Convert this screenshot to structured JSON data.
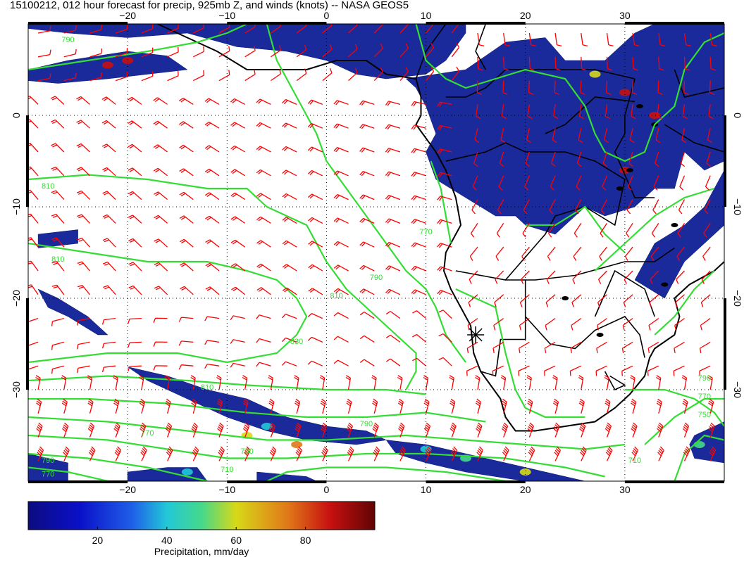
{
  "title": "15100212, 012 hour forecast for precip, 925mb Z, and winds (knots) -- NASA GEOS5",
  "map": {
    "lon_range": [
      -30,
      40
    ],
    "lat_range": [
      -40,
      10
    ],
    "lon_ticks": [
      -20,
      -10,
      0,
      10,
      20,
      30
    ],
    "lat_ticks": [
      0,
      -10,
      -20,
      -30
    ],
    "lon_tick_labels": [
      "−20",
      "−10",
      "0",
      "10",
      "20",
      "30"
    ],
    "lat_tick_labels": [
      "0",
      "−10",
      "−20",
      "−30"
    ],
    "gridlines": "dotted",
    "wind_barb_color": "#ff0000",
    "contour_color": "#33dd33",
    "coastline_color": "#000000",
    "precip_base_color": "#1a2a9a",
    "marker": {
      "lon": 15,
      "lat": -24,
      "shape": "asterisk"
    },
    "contour_labels": [
      {
        "text": "790",
        "lon": -26,
        "lat": 8
      },
      {
        "text": "810",
        "lon": -28,
        "lat": -8
      },
      {
        "text": "810",
        "lon": -27,
        "lat": -16
      },
      {
        "text": "810",
        "lon": 1,
        "lat": -20
      },
      {
        "text": "790",
        "lon": 5,
        "lat": -18
      },
      {
        "text": "830",
        "lon": -3,
        "lat": -25
      },
      {
        "text": "810",
        "lon": -12,
        "lat": -30
      },
      {
        "text": "790",
        "lon": 4,
        "lat": -34
      },
      {
        "text": "770",
        "lon": -18,
        "lat": -35
      },
      {
        "text": "730",
        "lon": -8,
        "lat": -37
      },
      {
        "text": "710",
        "lon": -10,
        "lat": -39
      },
      {
        "text": "790",
        "lon": -28,
        "lat": -38
      },
      {
        "text": "770",
        "lon": -28,
        "lat": -39.5
      },
      {
        "text": "770",
        "lon": 10,
        "lat": -13
      },
      {
        "text": "790",
        "lon": 38,
        "lat": -29
      },
      {
        "text": "770",
        "lon": 38,
        "lat": -31
      },
      {
        "text": "750",
        "lon": 38,
        "lat": -33
      },
      {
        "text": "710",
        "lon": 31,
        "lat": -38
      }
    ]
  },
  "colorbar": {
    "tick_values": [
      20,
      40,
      60,
      80
    ],
    "tick_labels": [
      "20",
      "40",
      "60",
      "80"
    ],
    "range": [
      0,
      100
    ],
    "label": "Precipitation, mm/day",
    "stops": [
      {
        "value": 0,
        "color": "#0c0c80"
      },
      {
        "value": 15,
        "color": "#0a10c8"
      },
      {
        "value": 30,
        "color": "#1f5fe8"
      },
      {
        "value": 40,
        "color": "#22c8d8"
      },
      {
        "value": 50,
        "color": "#45d88a"
      },
      {
        "value": 60,
        "color": "#d8d818"
      },
      {
        "value": 75,
        "color": "#e07818"
      },
      {
        "value": 87,
        "color": "#c81010"
      },
      {
        "value": 100,
        "color": "#600404"
      }
    ]
  }
}
